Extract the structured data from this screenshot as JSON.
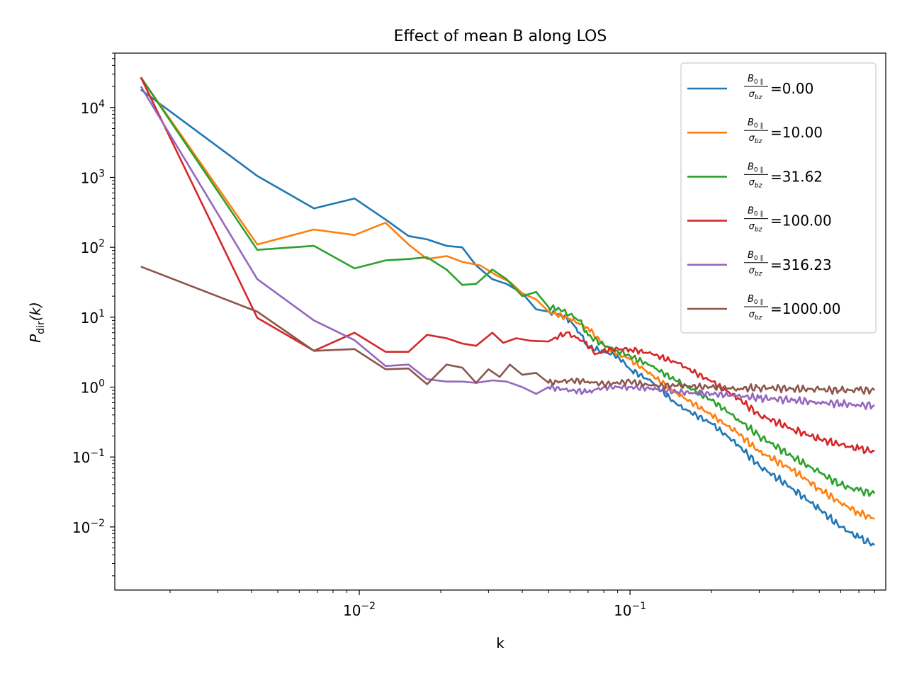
{
  "chart_data": {
    "type": "line",
    "title": "Effect of mean B along LOS",
    "xlabel": "k",
    "ylabel": "P_dir(k)",
    "ylabel_main": "P",
    "ylabel_sub": "dir",
    "ylabel_args": "(k)",
    "xscale": "log",
    "yscale": "log",
    "xlim": [
      0.00125,
      0.88
    ],
    "ylim": [
      0.00125,
      60000
    ],
    "xticks": [
      {
        "value": 0.01,
        "base": "10",
        "exp": "−2"
      },
      {
        "value": 0.1,
        "base": "10",
        "exp": "−1"
      }
    ],
    "yticks": [
      {
        "value": 10000,
        "base": "10",
        "exp": "4"
      },
      {
        "value": 1000,
        "base": "10",
        "exp": "3"
      },
      {
        "value": 100,
        "base": "10",
        "exp": "2"
      },
      {
        "value": 10,
        "base": "10",
        "exp": "1"
      },
      {
        "value": 1,
        "base": "10",
        "exp": "0"
      },
      {
        "value": 0.1,
        "base": "10",
        "exp": "−1"
      },
      {
        "value": 0.01,
        "base": "10",
        "exp": "−2"
      }
    ],
    "grid": false,
    "legend_position": "top-right",
    "legend_label_numerator": "B",
    "legend_label_numerator_sub": "0 ∥",
    "legend_label_denominator": "σ",
    "legend_label_denominator_sub": "bz",
    "series": [
      {
        "name": "B0∥/σbz=0.00",
        "ratio": "0.00",
        "color": "#1f77b4",
        "points": [
          [
            0.00156,
            18000
          ],
          [
            0.0042,
            1050
          ],
          [
            0.0068,
            360
          ],
          [
            0.0096,
            500
          ],
          [
            0.0125,
            250
          ],
          [
            0.0152,
            145
          ],
          [
            0.0178,
            130
          ],
          [
            0.021,
            105
          ],
          [
            0.024,
            100
          ],
          [
            0.027,
            55
          ],
          [
            0.031,
            35
          ],
          [
            0.035,
            30
          ],
          [
            0.04,
            22
          ],
          [
            0.045,
            13
          ],
          [
            0.05,
            12
          ],
          [
            0.055,
            11
          ],
          [
            0.06,
            9
          ],
          [
            0.065,
            6
          ],
          [
            0.07,
            3.8
          ],
          [
            0.08,
            3.2
          ],
          [
            0.09,
            2.8
          ],
          [
            0.1,
            1.8
          ],
          [
            0.12,
            1.2
          ],
          [
            0.15,
            0.55
          ],
          [
            0.2,
            0.3
          ],
          [
            0.25,
            0.15
          ],
          [
            0.3,
            0.075
          ],
          [
            0.4,
            0.035
          ],
          [
            0.5,
            0.018
          ],
          [
            0.6,
            0.01
          ],
          [
            0.7,
            0.007
          ],
          [
            0.8,
            0.0055
          ]
        ]
      },
      {
        "name": "B0∥/σbz=10.00",
        "ratio": "10.00",
        "color": "#ff7f0e",
        "points": [
          [
            0.00156,
            27000
          ],
          [
            0.0042,
            110
          ],
          [
            0.0068,
            180
          ],
          [
            0.0096,
            150
          ],
          [
            0.0125,
            225
          ],
          [
            0.0152,
            110
          ],
          [
            0.0178,
            68
          ],
          [
            0.021,
            75
          ],
          [
            0.024,
            62
          ],
          [
            0.028,
            55
          ],
          [
            0.032,
            40
          ],
          [
            0.036,
            32
          ],
          [
            0.04,
            22
          ],
          [
            0.045,
            18
          ],
          [
            0.05,
            12
          ],
          [
            0.06,
            9.5
          ],
          [
            0.07,
            7
          ],
          [
            0.08,
            4
          ],
          [
            0.09,
            3
          ],
          [
            0.1,
            2.5
          ],
          [
            0.12,
            1.5
          ],
          [
            0.15,
            0.8
          ],
          [
            0.2,
            0.4
          ],
          [
            0.25,
            0.22
          ],
          [
            0.3,
            0.12
          ],
          [
            0.4,
            0.065
          ],
          [
            0.5,
            0.035
          ],
          [
            0.6,
            0.022
          ],
          [
            0.7,
            0.016
          ],
          [
            0.8,
            0.013
          ]
        ]
      },
      {
        "name": "B0∥/σbz=31.62",
        "ratio": "31.62",
        "color": "#2ca02c",
        "points": [
          [
            0.00156,
            27000
          ],
          [
            0.0042,
            92
          ],
          [
            0.0068,
            105
          ],
          [
            0.0096,
            50
          ],
          [
            0.0125,
            65
          ],
          [
            0.0152,
            68
          ],
          [
            0.0178,
            72
          ],
          [
            0.021,
            48
          ],
          [
            0.024,
            29
          ],
          [
            0.027,
            30
          ],
          [
            0.031,
            48
          ],
          [
            0.035,
            35
          ],
          [
            0.04,
            20
          ],
          [
            0.045,
            23
          ],
          [
            0.05,
            14
          ],
          [
            0.055,
            13
          ],
          [
            0.06,
            11
          ],
          [
            0.065,
            9
          ],
          [
            0.07,
            5.5
          ],
          [
            0.08,
            4
          ],
          [
            0.09,
            3.3
          ],
          [
            0.1,
            2.8
          ],
          [
            0.12,
            2
          ],
          [
            0.15,
            1.2
          ],
          [
            0.2,
            0.65
          ],
          [
            0.25,
            0.35
          ],
          [
            0.3,
            0.2
          ],
          [
            0.4,
            0.1
          ],
          [
            0.5,
            0.06
          ],
          [
            0.6,
            0.04
          ],
          [
            0.7,
            0.033
          ],
          [
            0.8,
            0.03
          ]
        ]
      },
      {
        "name": "B0∥/σbz=100.00",
        "ratio": "100.00",
        "color": "#d62728",
        "points": [
          [
            0.00156,
            27000
          ],
          [
            0.0042,
            9.8
          ],
          [
            0.0068,
            3.3
          ],
          [
            0.0096,
            6
          ],
          [
            0.0125,
            3.2
          ],
          [
            0.0152,
            3.2
          ],
          [
            0.0178,
            5.6
          ],
          [
            0.021,
            5
          ],
          [
            0.024,
            4.2
          ],
          [
            0.027,
            3.9
          ],
          [
            0.031,
            6
          ],
          [
            0.034,
            4.3
          ],
          [
            0.038,
            5
          ],
          [
            0.043,
            4.6
          ],
          [
            0.05,
            4.5
          ],
          [
            0.058,
            6
          ],
          [
            0.067,
            4.6
          ],
          [
            0.075,
            3
          ],
          [
            0.085,
            3.5
          ],
          [
            0.1,
            3.5
          ],
          [
            0.12,
            3
          ],
          [
            0.15,
            2.2
          ],
          [
            0.2,
            1.2
          ],
          [
            0.25,
            0.7
          ],
          [
            0.3,
            0.4
          ],
          [
            0.4,
            0.25
          ],
          [
            0.5,
            0.18
          ],
          [
            0.6,
            0.15
          ],
          [
            0.7,
            0.13
          ],
          [
            0.8,
            0.12
          ]
        ]
      },
      {
        "name": "B0∥/σbz=316.23",
        "ratio": "316.23",
        "color": "#9467bd",
        "points": [
          [
            0.00156,
            20000
          ],
          [
            0.0042,
            35
          ],
          [
            0.0068,
            9
          ],
          [
            0.0096,
            4.7
          ],
          [
            0.0125,
            2
          ],
          [
            0.0152,
            2.1
          ],
          [
            0.0178,
            1.3
          ],
          [
            0.021,
            1.2
          ],
          [
            0.024,
            1.2
          ],
          [
            0.027,
            1.15
          ],
          [
            0.031,
            1.25
          ],
          [
            0.035,
            1.2
          ],
          [
            0.04,
            1
          ],
          [
            0.045,
            0.8
          ],
          [
            0.05,
            1
          ],
          [
            0.06,
            0.9
          ],
          [
            0.07,
            0.85
          ],
          [
            0.08,
            1
          ],
          [
            0.1,
            1
          ],
          [
            0.12,
            0.95
          ],
          [
            0.15,
            0.85
          ],
          [
            0.2,
            0.8
          ],
          [
            0.25,
            0.75
          ],
          [
            0.3,
            0.7
          ],
          [
            0.4,
            0.65
          ],
          [
            0.5,
            0.6
          ],
          [
            0.6,
            0.58
          ],
          [
            0.7,
            0.55
          ],
          [
            0.8,
            0.55
          ]
        ]
      },
      {
        "name": "B0∥/σbz=1000.00",
        "ratio": "1000.00",
        "color": "#8c564b",
        "points": [
          [
            0.00156,
            53
          ],
          [
            0.0042,
            12
          ],
          [
            0.0068,
            3.3
          ],
          [
            0.0096,
            3.5
          ],
          [
            0.0125,
            1.8
          ],
          [
            0.0152,
            1.85
          ],
          [
            0.0178,
            1.1
          ],
          [
            0.021,
            2.1
          ],
          [
            0.024,
            1.9
          ],
          [
            0.027,
            1.15
          ],
          [
            0.03,
            1.8
          ],
          [
            0.033,
            1.4
          ],
          [
            0.036,
            2.1
          ],
          [
            0.04,
            1.5
          ],
          [
            0.045,
            1.6
          ],
          [
            0.05,
            1.15
          ],
          [
            0.06,
            1.25
          ],
          [
            0.07,
            1.2
          ],
          [
            0.08,
            1.1
          ],
          [
            0.1,
            1.2
          ],
          [
            0.12,
            1.05
          ],
          [
            0.15,
            1.05
          ],
          [
            0.2,
            1.0
          ],
          [
            0.25,
            0.95
          ],
          [
            0.3,
            0.98
          ],
          [
            0.4,
            0.95
          ],
          [
            0.5,
            0.92
          ],
          [
            0.6,
            0.9
          ],
          [
            0.7,
            0.9
          ],
          [
            0.8,
            0.9
          ]
        ]
      }
    ]
  }
}
